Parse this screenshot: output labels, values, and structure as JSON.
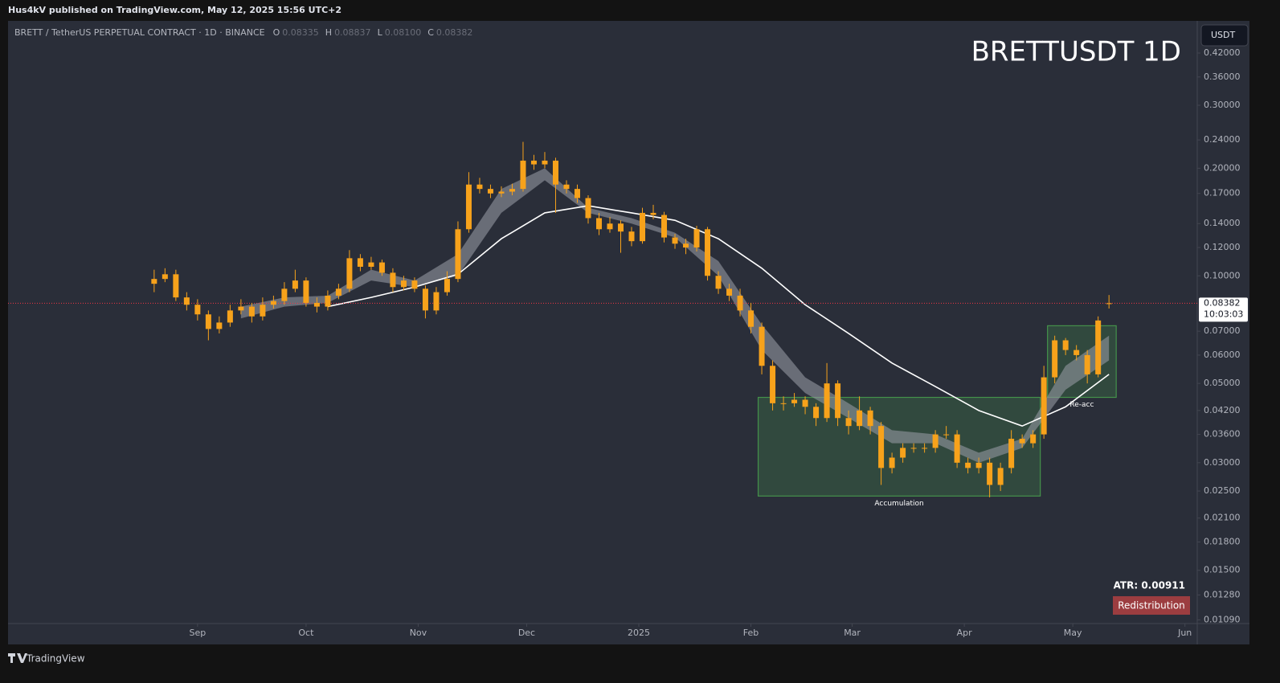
{
  "header": {
    "publisher": "Hus4kV published on TradingView.com, May 12, 2025 15:56 UTC+2"
  },
  "chart_data": {
    "type": "candlestick",
    "title": "BRETTUSDT 1D",
    "symbol": "BRETT / TetherUS PERPETUAL CONTRACT · 1D · BINANCE",
    "ohlc_legend": [
      {
        "name": "O",
        "value": 0.08335,
        "label": "0.08335"
      },
      {
        "name": "H",
        "value": 0.08837,
        "label": "0.08837"
      },
      {
        "name": "L",
        "value": 0.081,
        "label": "0.08100"
      },
      {
        "name": "C",
        "value": 0.08382,
        "label": "0.08382"
      }
    ],
    "currency": "USDT",
    "color": "#f7a21b",
    "log_scale": true,
    "grid": false,
    "xlim": [
      -40.4,
      288.4
    ],
    "xticks": [
      {
        "value": 12,
        "label": "Sep"
      },
      {
        "value": 42,
        "label": "Oct"
      },
      {
        "value": 73,
        "label": "Nov"
      },
      {
        "value": 103,
        "label": "Dec"
      },
      {
        "value": 134,
        "label": "2025"
      },
      {
        "value": 165,
        "label": "Feb"
      },
      {
        "value": 193,
        "label": "Mar"
      },
      {
        "value": 224,
        "label": "Apr"
      },
      {
        "value": 254,
        "label": "May"
      },
      {
        "value": 285,
        "label": "Jun"
      }
    ],
    "ylim": [
      0.0107,
      0.514
    ],
    "yticks": [
      {
        "value": 0.42,
        "label": "0.42000"
      },
      {
        "value": 0.36,
        "label": "0.36000"
      },
      {
        "value": 0.3,
        "label": "0.30000"
      },
      {
        "value": 0.24,
        "label": "0.24000"
      },
      {
        "value": 0.2,
        "label": "0.20000"
      },
      {
        "value": 0.17,
        "label": "0.17000"
      },
      {
        "value": 0.14,
        "label": "0.14000"
      },
      {
        "value": 0.12,
        "label": "0.12000"
      },
      {
        "value": 0.1,
        "label": "0.10000"
      },
      {
        "value": 0.07,
        "label": "0.07000"
      },
      {
        "value": 0.06,
        "label": "0.06000"
      },
      {
        "value": 0.05,
        "label": "0.05000"
      },
      {
        "value": 0.042,
        "label": "0.04200"
      },
      {
        "value": 0.036,
        "label": "0.03600"
      },
      {
        "value": 0.03,
        "label": "0.03000"
      },
      {
        "value": 0.025,
        "label": "0.02500"
      },
      {
        "value": 0.021,
        "label": "0.02100"
      },
      {
        "value": 0.018,
        "label": "0.01800"
      },
      {
        "value": 0.015,
        "label": "0.01500"
      },
      {
        "value": 0.0128,
        "label": "0.01280"
      },
      {
        "value": 0.0109,
        "label": "0.01090"
      }
    ],
    "x": [
      0,
      3,
      6,
      9,
      12,
      15,
      18,
      21,
      24,
      27,
      30,
      33,
      36,
      39,
      42,
      45,
      48,
      51,
      54,
      57,
      60,
      63,
      66,
      69,
      72,
      75,
      78,
      81,
      84,
      87,
      90,
      93,
      96,
      99,
      102,
      105,
      108,
      111,
      114,
      117,
      120,
      123,
      126,
      129,
      132,
      135,
      138,
      141,
      144,
      147,
      150,
      153,
      156,
      159,
      162,
      165,
      168,
      171,
      174,
      177,
      180,
      183,
      186,
      189,
      192,
      195,
      198,
      201,
      204,
      207,
      210,
      213,
      216,
      219,
      222,
      225,
      228,
      231,
      234,
      237,
      240,
      243,
      246,
      249,
      252,
      255,
      258,
      261,
      264
    ],
    "open": [
      0.095,
      0.098,
      0.101,
      0.087,
      0.083,
      0.078,
      0.071,
      0.074,
      0.08,
      0.082,
      0.077,
      0.083,
      0.085,
      0.092,
      0.097,
      0.084,
      0.082,
      0.088,
      0.092,
      0.112,
      0.106,
      0.109,
      0.102,
      0.093,
      0.097,
      0.092,
      0.08,
      0.09,
      0.098,
      0.135,
      0.18,
      0.175,
      0.17,
      0.172,
      0.175,
      0.21,
      0.205,
      0.21,
      0.18,
      0.175,
      0.165,
      0.145,
      0.135,
      0.14,
      0.133,
      0.125,
      0.15,
      0.148,
      0.128,
      0.123,
      0.12,
      0.135,
      0.1,
      0.092,
      0.088,
      0.08,
      0.072,
      0.056,
      0.044,
      0.044,
      0.045,
      0.043,
      0.04,
      0.05,
      0.04,
      0.038,
      0.042,
      0.038,
      0.029,
      0.031,
      0.033,
      0.033,
      0.033,
      0.036,
      0.036,
      0.03,
      0.029,
      0.03,
      0.026,
      0.029,
      0.035,
      0.034,
      0.036,
      0.052,
      0.066,
      0.062,
      0.06,
      0.053,
      0.08335
    ],
    "high": [
      0.104,
      0.105,
      0.104,
      0.09,
      0.086,
      0.08,
      0.077,
      0.083,
      0.086,
      0.084,
      0.087,
      0.088,
      0.096,
      0.104,
      0.099,
      0.087,
      0.091,
      0.095,
      0.118,
      0.115,
      0.113,
      0.111,
      0.105,
      0.1,
      0.099,
      0.094,
      0.093,
      0.103,
      0.142,
      0.195,
      0.188,
      0.18,
      0.178,
      0.181,
      0.237,
      0.218,
      0.222,
      0.214,
      0.185,
      0.18,
      0.168,
      0.15,
      0.146,
      0.143,
      0.137,
      0.155,
      0.158,
      0.151,
      0.131,
      0.127,
      0.138,
      0.137,
      0.103,
      0.095,
      0.092,
      0.084,
      0.074,
      0.058,
      0.046,
      0.047,
      0.046,
      0.044,
      0.057,
      0.051,
      0.042,
      0.046,
      0.043,
      0.039,
      0.032,
      0.034,
      0.034,
      0.034,
      0.037,
      0.038,
      0.037,
      0.031,
      0.031,
      0.031,
      0.03,
      0.037,
      0.036,
      0.037,
      0.056,
      0.068,
      0.067,
      0.064,
      0.062,
      0.077,
      0.08837
    ],
    "low": [
      0.09,
      0.096,
      0.085,
      0.08,
      0.075,
      0.066,
      0.069,
      0.072,
      0.078,
      0.074,
      0.075,
      0.081,
      0.083,
      0.09,
      0.082,
      0.079,
      0.08,
      0.086,
      0.09,
      0.103,
      0.104,
      0.1,
      0.09,
      0.091,
      0.09,
      0.076,
      0.078,
      0.088,
      0.096,
      0.132,
      0.17,
      0.165,
      0.166,
      0.168,
      0.172,
      0.198,
      0.2,
      0.15,
      0.17,
      0.16,
      0.14,
      0.13,
      0.132,
      0.116,
      0.121,
      0.123,
      0.144,
      0.124,
      0.119,
      0.115,
      0.117,
      0.097,
      0.089,
      0.085,
      0.077,
      0.069,
      0.053,
      0.042,
      0.042,
      0.043,
      0.041,
      0.038,
      0.039,
      0.038,
      0.036,
      0.037,
      0.036,
      0.026,
      0.028,
      0.03,
      0.032,
      0.032,
      0.032,
      0.035,
      0.029,
      0.028,
      0.028,
      0.024,
      0.025,
      0.028,
      0.033,
      0.033,
      0.035,
      0.05,
      0.06,
      0.058,
      0.05,
      0.052,
      0.081
    ],
    "close": [
      0.098,
      0.101,
      0.087,
      0.083,
      0.078,
      0.071,
      0.074,
      0.08,
      0.082,
      0.077,
      0.083,
      0.085,
      0.092,
      0.097,
      0.084,
      0.082,
      0.088,
      0.092,
      0.112,
      0.106,
      0.109,
      0.102,
      0.093,
      0.097,
      0.092,
      0.08,
      0.09,
      0.098,
      0.135,
      0.18,
      0.175,
      0.17,
      0.172,
      0.175,
      0.21,
      0.205,
      0.21,
      0.18,
      0.175,
      0.165,
      0.145,
      0.135,
      0.14,
      0.133,
      0.125,
      0.15,
      0.148,
      0.128,
      0.123,
      0.12,
      0.135,
      0.1,
      0.092,
      0.088,
      0.08,
      0.072,
      0.056,
      0.044,
      0.044,
      0.045,
      0.043,
      0.04,
      0.05,
      0.04,
      0.038,
      0.042,
      0.038,
      0.029,
      0.031,
      0.033,
      0.033,
      0.033,
      0.036,
      0.036,
      0.03,
      0.029,
      0.03,
      0.026,
      0.029,
      0.035,
      0.034,
      0.036,
      0.052,
      0.066,
      0.062,
      0.06,
      0.053,
      0.075,
      0.08382
    ],
    "overlays": {
      "x": [
        24,
        36,
        48,
        60,
        72,
        84,
        96,
        108,
        120,
        132,
        144,
        156,
        168,
        180,
        192,
        204,
        216,
        228,
        240,
        252,
        264
      ],
      "ribbon_color": "#9598a1",
      "ribbon_upper": [
        0.082,
        0.087,
        0.088,
        0.104,
        0.097,
        0.115,
        0.175,
        0.2,
        0.155,
        0.145,
        0.132,
        0.11,
        0.073,
        0.052,
        0.044,
        0.037,
        0.036,
        0.032,
        0.035,
        0.056,
        0.068
      ],
      "ribbon_lower": [
        0.076,
        0.082,
        0.084,
        0.097,
        0.093,
        0.1,
        0.15,
        0.185,
        0.15,
        0.14,
        0.128,
        0.1,
        0.062,
        0.047,
        0.04,
        0.034,
        0.034,
        0.03,
        0.033,
        0.048,
        0.058
      ],
      "ma_color": "#ffffff",
      "ma": [
        null,
        null,
        0.082,
        0.087,
        0.093,
        0.101,
        0.127,
        0.15,
        0.157,
        0.15,
        0.143,
        0.127,
        0.105,
        0.083,
        0.069,
        0.057,
        0.049,
        0.042,
        0.038,
        0.043,
        0.053
      ]
    },
    "boxes": [
      {
        "label": "Accumulation",
        "x": [
          167,
          245
        ],
        "y": [
          0.0242,
          0.0457
        ]
      },
      {
        "label": "Re-acc",
        "x": [
          247,
          266
        ],
        "y": [
          0.0457,
          0.0725
        ]
      }
    ],
    "last_price": {
      "value": 0.08382,
      "countdown": "10:03:03"
    },
    "atr": "ATR: 0.00911",
    "tag": "Redistribution"
  },
  "footer": {
    "brand": "TradingView"
  }
}
